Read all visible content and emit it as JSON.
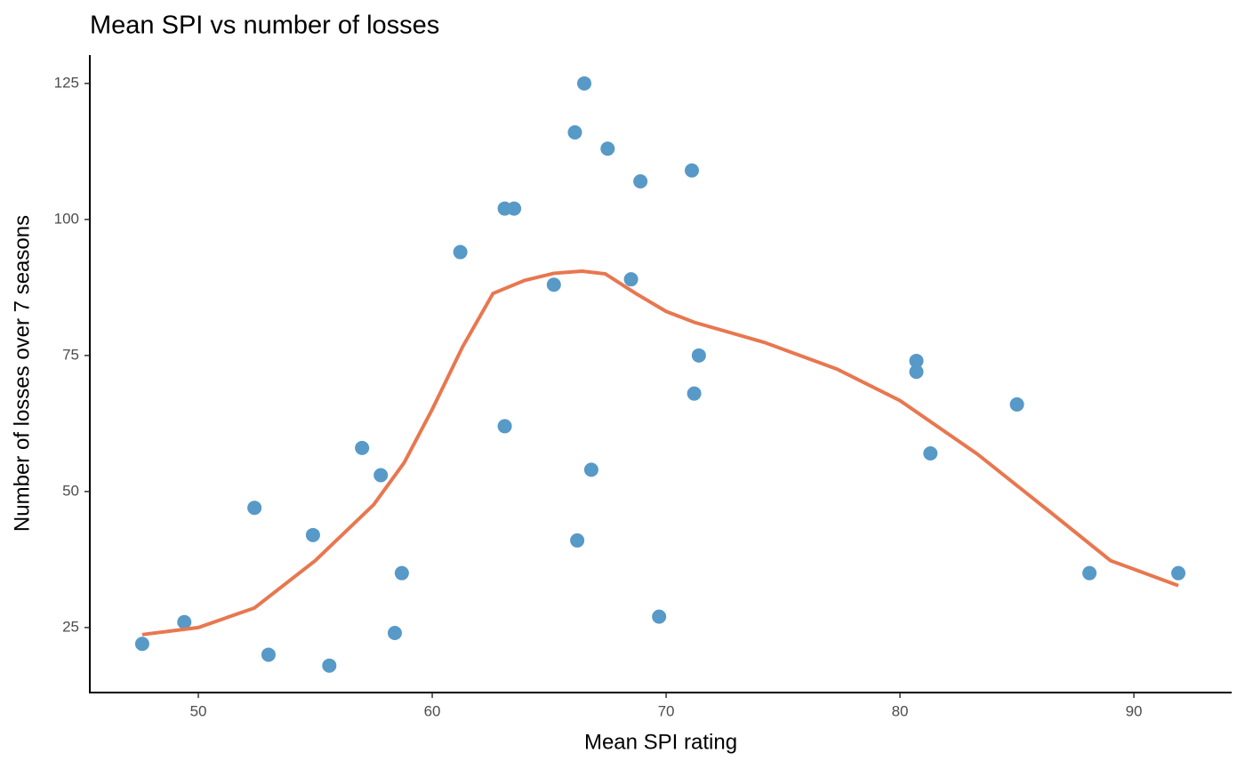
{
  "chart_data": {
    "type": "scatter",
    "title": "Mean SPI vs number of losses",
    "x_label": "Mean SPI rating",
    "y_label": "Number of losses over 7 seasons",
    "xlim": [
      45.36,
      94.18
    ],
    "ylim": [
      13.05,
      130.2
    ],
    "xticks": [
      50,
      60,
      70,
      80,
      90
    ],
    "yticks": [
      25,
      50,
      75,
      100,
      125
    ],
    "grid": false,
    "series": [
      {
        "type": "scatter",
        "color": "#5799c7",
        "x": [
          47.6,
          49.4,
          52.4,
          53.0,
          54.9,
          55.6,
          57.0,
          57.8,
          58.4,
          58.7,
          61.2,
          63.1,
          63.5,
          63.1,
          65.2,
          66.1,
          66.2,
          66.5,
          66.8,
          67.5,
          68.5,
          68.9,
          69.7,
          71.1,
          71.2,
          71.4,
          80.7,
          80.7,
          81.3,
          85.0,
          88.1,
          91.9
        ],
        "y": [
          22,
          26,
          47,
          20,
          42,
          18,
          58,
          53,
          24,
          35,
          94,
          102,
          102,
          62,
          88,
          116,
          41,
          125,
          54,
          113,
          89,
          107,
          27,
          109,
          68,
          75,
          74,
          72,
          57,
          66,
          35,
          35
        ]
      },
      {
        "type": "line",
        "color": "#e8774f",
        "x": [
          47.6,
          50,
          52.4,
          55,
          57.5,
          58.8,
          60,
          61.3,
          62.6,
          63.95,
          65.2,
          66.4,
          67.4,
          68.7,
          70,
          71.2,
          74.2,
          77.3,
          80,
          83.3,
          86.4,
          89,
          91.9
        ],
        "y": [
          23.7,
          25,
          28.6,
          37.3,
          47.6,
          55.3,
          65.1,
          76.6,
          86.4,
          88.8,
          90.1,
          90.5,
          90.0,
          86.4,
          83.1,
          81.1,
          77.4,
          72.5,
          66.7,
          56.9,
          46.3,
          37.3,
          32.7
        ]
      }
    ]
  }
}
